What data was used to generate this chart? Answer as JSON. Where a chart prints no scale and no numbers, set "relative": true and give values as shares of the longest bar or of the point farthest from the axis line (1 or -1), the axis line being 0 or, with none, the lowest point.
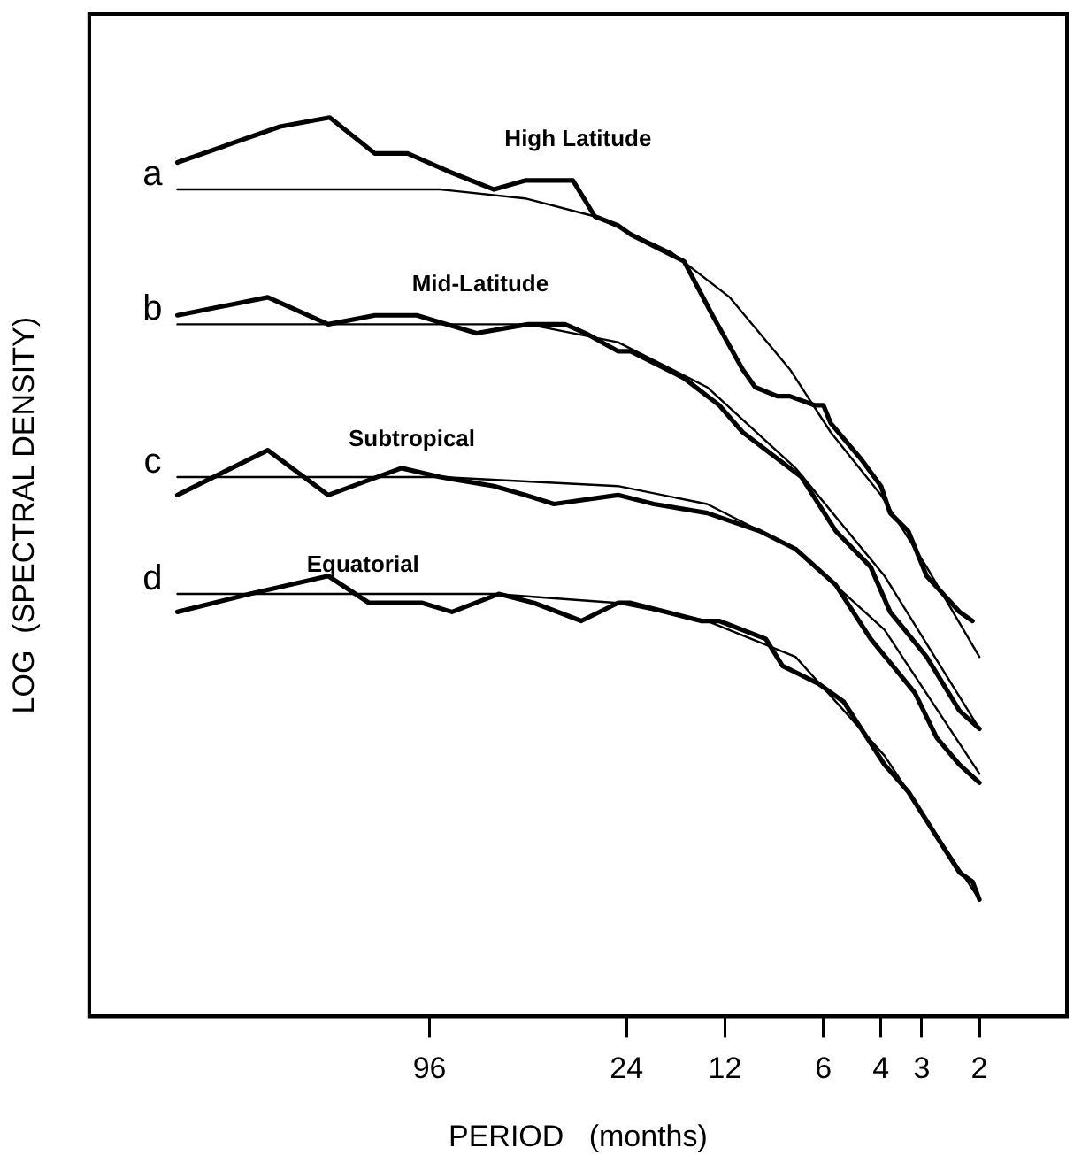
{
  "chart_data": {
    "type": "line",
    "xlabel": "PERIOD   (months)",
    "ylabel": "LOG  (SPECTRAL DENSITY)",
    "relative": true,
    "log": "x",
    "grid": false,
    "legend": false,
    "marker": "none",
    "line_style": "solid",
    "tick_labels": "x",
    "xlim": [
      1055,
      1.08
    ],
    "xticks": [
      96,
      24,
      12,
      6,
      4,
      3,
      2
    ],
    "series": [
      {
        "name": "High Latitude",
        "color": "#000000",
        "x": [
          567,
          275,
          194,
          141,
          112,
          84,
          61,
          49,
          35,
          30,
          25.5,
          23.3,
          16,
          13.1,
          10.6,
          9.7,
          8.3,
          7.6,
          6.4,
          6,
          5.7,
          4.6,
          4,
          3.75,
          3.3,
          2.9,
          2.3,
          2.1
        ],
        "values": [
          0.95,
          0.99,
          1,
          0.96,
          0.96,
          0.94,
          0.92,
          0.93,
          0.93,
          0.89,
          0.88,
          0.87,
          0.84,
          0.78,
          0.72,
          0.7,
          0.69,
          0.69,
          0.68,
          0.68,
          0.66,
          0.62,
          0.59,
          0.56,
          0.54,
          0.49,
          0.45,
          0.44
        ]
      },
      {
        "color": "#000000",
        "x": [
          567,
          89,
          49,
          30,
          17.5,
          11.6,
          7.6,
          5.7,
          4,
          2.9,
          2
        ],
        "values": [
          0.92,
          0.92,
          0.91,
          0.89,
          0.85,
          0.8,
          0.72,
          0.65,
          0.58,
          0.5,
          0.4
        ]
      },
      {
        "name": "Mid-Latitude",
        "color": "#000000",
        "x": [
          567,
          300,
          196,
          141,
          105,
          69,
          48,
          37,
          32,
          25.5,
          23.3,
          16,
          12.5,
          10.6,
          7,
          5.5,
          4.3,
          3.75,
          2.9,
          2.3,
          2
        ],
        "values": [
          0.78,
          0.8,
          0.77,
          0.78,
          0.78,
          0.76,
          0.77,
          0.77,
          0.76,
          0.74,
          0.74,
          0.71,
          0.68,
          0.65,
          0.6,
          0.54,
          0.5,
          0.45,
          0.4,
          0.34,
          0.32
        ]
      },
      {
        "color": "#000000",
        "x": [
          567,
          89,
          48,
          25.5,
          13.6,
          7.3,
          3.9,
          2
        ],
        "values": [
          0.77,
          0.77,
          0.77,
          0.75,
          0.7,
          0.61,
          0.49,
          0.32
        ]
      },
      {
        "name": "Subtropical",
        "color": "#000000",
        "x": [
          567,
          300,
          196,
          117,
          89,
          61,
          49,
          40,
          25.5,
          19.8,
          13.6,
          9.4,
          7.3,
          5.5,
          4.3,
          3.15,
          2.7,
          2.3,
          2
        ],
        "values": [
          0.58,
          0.63,
          0.58,
          0.61,
          0.6,
          0.59,
          0.58,
          0.57,
          0.58,
          0.57,
          0.56,
          0.54,
          0.52,
          0.48,
          0.42,
          0.36,
          0.31,
          0.28,
          0.26
        ]
      },
      {
        "color": "#000000",
        "x": [
          567,
          89,
          25.5,
          13.6,
          7.3,
          3.9,
          2
        ],
        "values": [
          0.6,
          0.6,
          0.59,
          0.57,
          0.52,
          0.43,
          0.27
        ]
      },
      {
        "name": "Equatorial",
        "color": "#000000",
        "x": [
          567,
          340,
          196,
          147,
          101,
          82,
          59,
          46,
          33,
          25.5,
          23.3,
          14.2,
          12.5,
          9,
          8,
          6.2,
          5.2,
          3.9,
          3.3,
          2.7,
          2.3,
          2.1,
          2
        ],
        "values": [
          0.45,
          0.47,
          0.49,
          0.46,
          0.46,
          0.45,
          0.47,
          0.46,
          0.44,
          0.46,
          0.46,
          0.44,
          0.44,
          0.42,
          0.39,
          0.37,
          0.35,
          0.28,
          0.25,
          0.2,
          0.16,
          0.15,
          0.13
        ]
      },
      {
        "color": "#000000",
        "x": [
          567,
          61,
          25.5,
          13.6,
          7.3,
          3.9,
          2
        ],
        "values": [
          0.47,
          0.47,
          0.46,
          0.44,
          0.4,
          0.29,
          0.13
        ]
      }
    ],
    "annotations": [
      "a",
      "b",
      "c",
      "d"
    ]
  }
}
